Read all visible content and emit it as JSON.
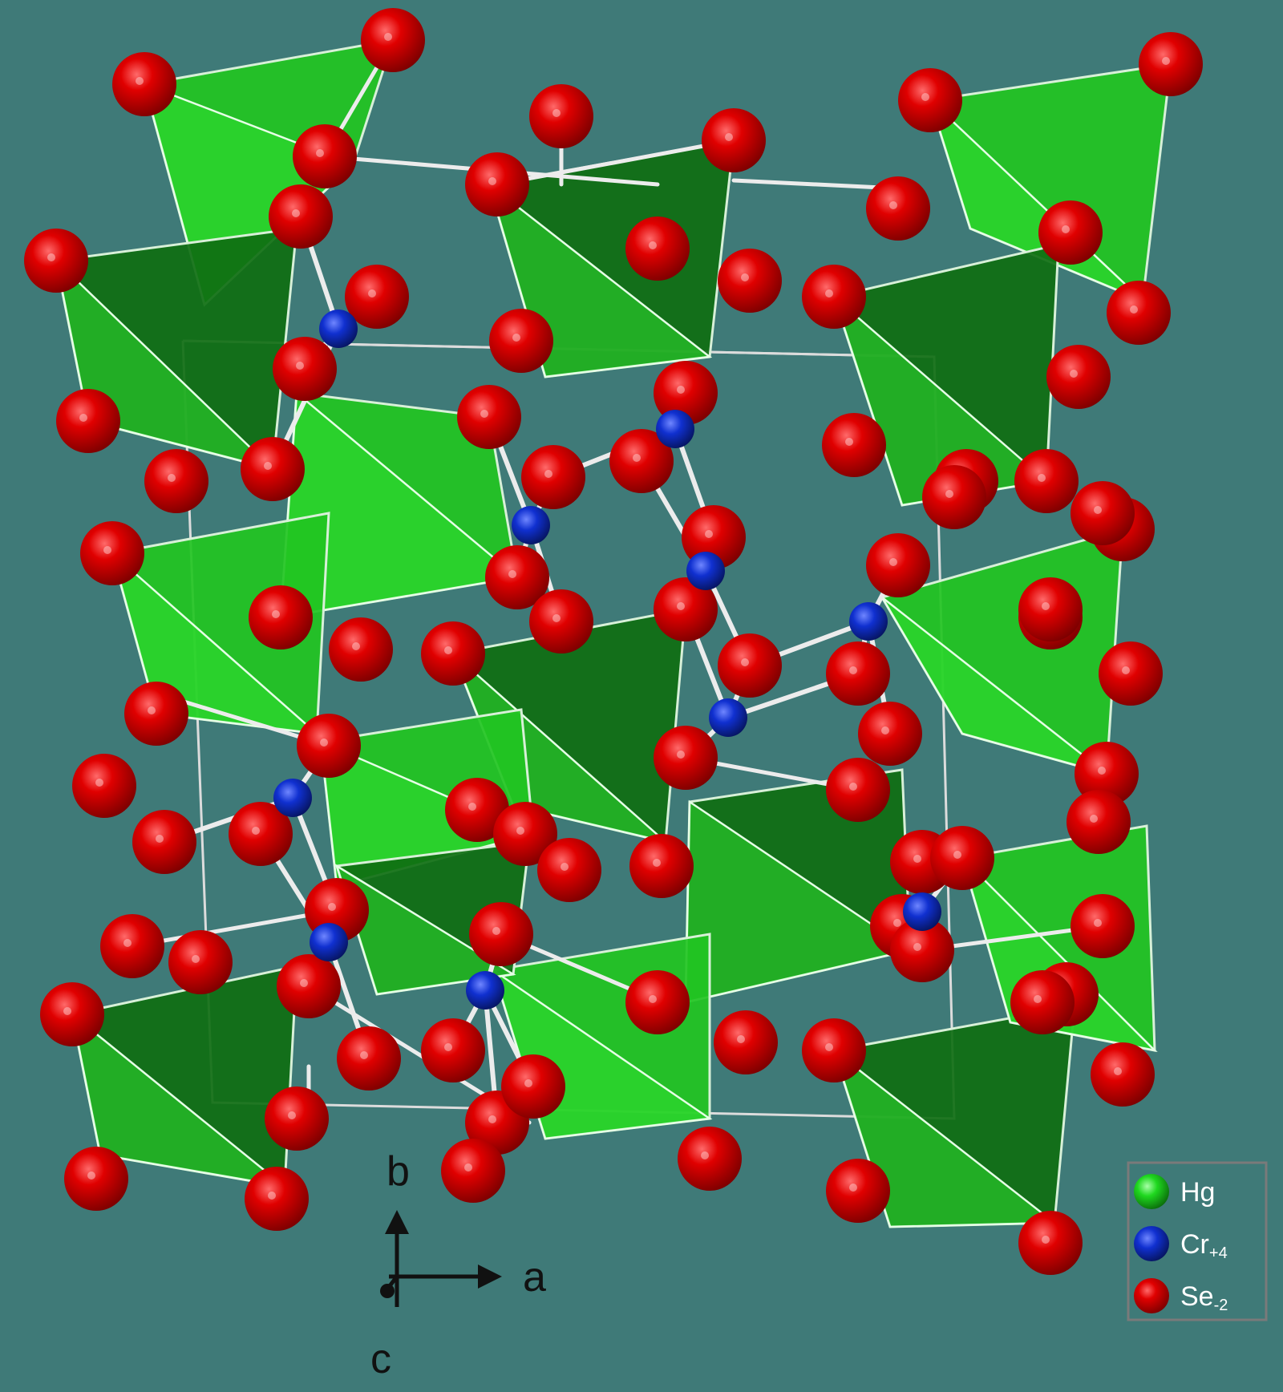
{
  "structure": {
    "view_axis": "c",
    "colors": {
      "background": "#3f7a78",
      "hg": "#1fd81f",
      "cr": "#1030c8",
      "se": "#d80000",
      "polyhedron_light": "#22cc22",
      "polyhedron_dark": "#0f6e12",
      "bond": "#e8e8e8"
    }
  },
  "axes": {
    "b": "b",
    "a": "a",
    "c": "c"
  },
  "legend": {
    "items": [
      {
        "element": "Hg",
        "charge": "",
        "color_key": "hg"
      },
      {
        "element": "Cr",
        "charge": "+4",
        "color_key": "cr"
      },
      {
        "element": "Se",
        "charge": "-2",
        "color_key": "se"
      }
    ]
  }
}
